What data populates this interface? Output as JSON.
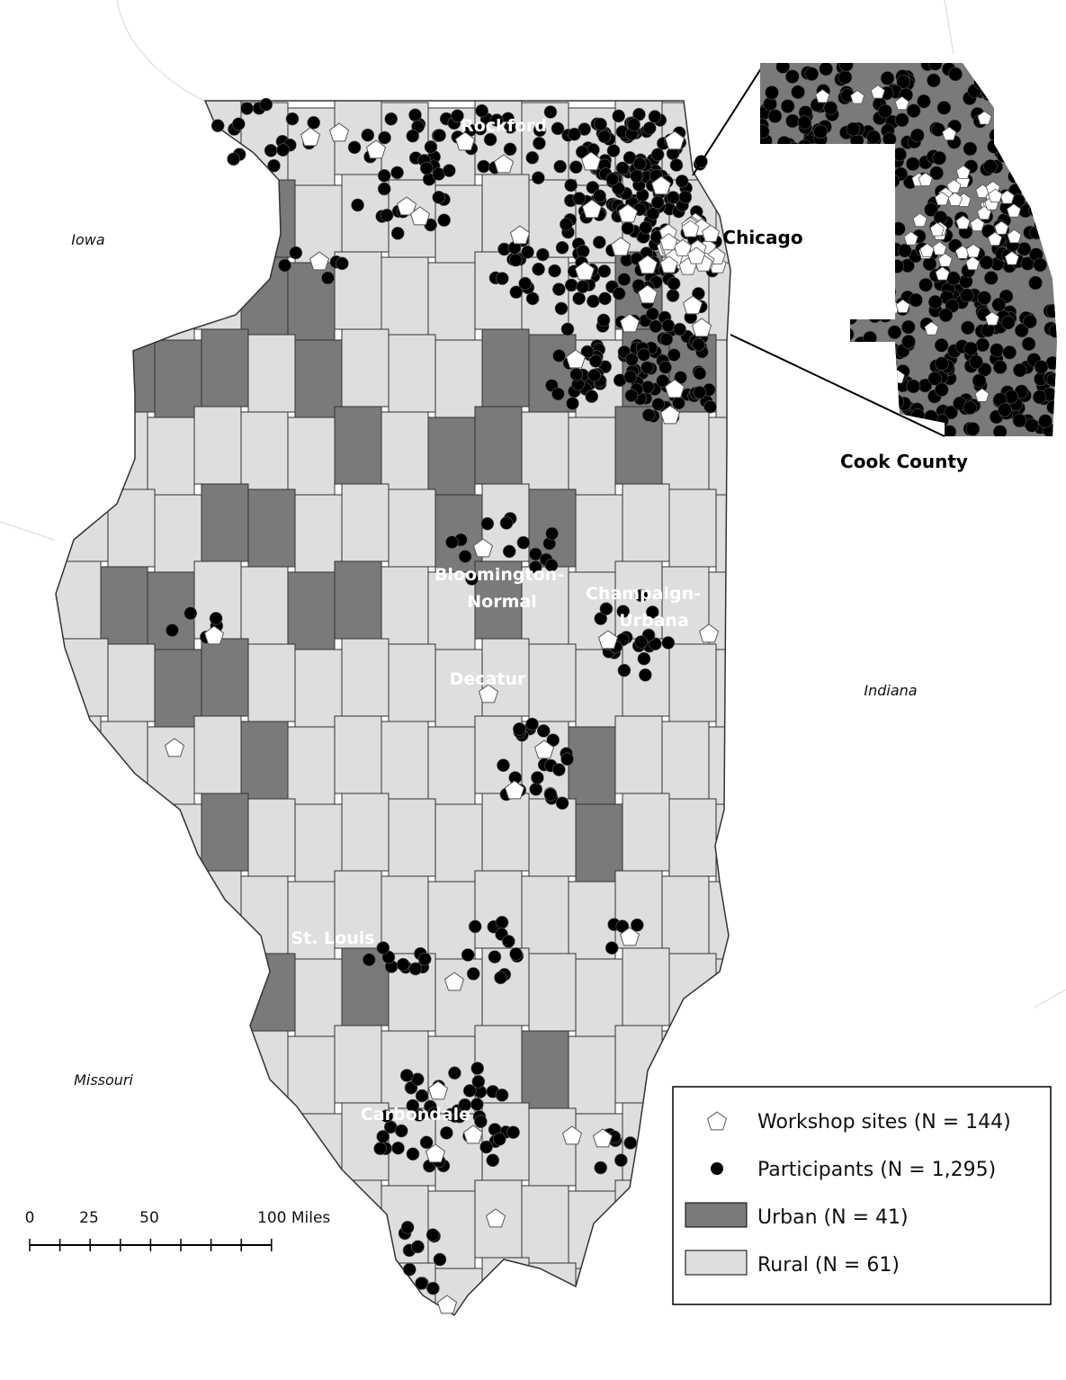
{
  "map_labels": {
    "states": [
      "Iowa",
      "Missouri",
      "Indiana"
    ],
    "cities": [
      "Rockford",
      "Chicago",
      "Bloomington-",
      "Normal",
      "Champaign-",
      "Urbana",
      "Decatur",
      "St. Louis",
      "Carbondale"
    ],
    "inset_title": "Cook County"
  },
  "legend": {
    "items": [
      "Workshop sites (N = 144)",
      "Participants (N = 1,295)",
      "Urban (N = 41)",
      "Rural (N = 61)"
    ]
  },
  "scale_bar": {
    "labels": [
      "0",
      "25",
      "50",
      "100 Miles"
    ]
  }
}
